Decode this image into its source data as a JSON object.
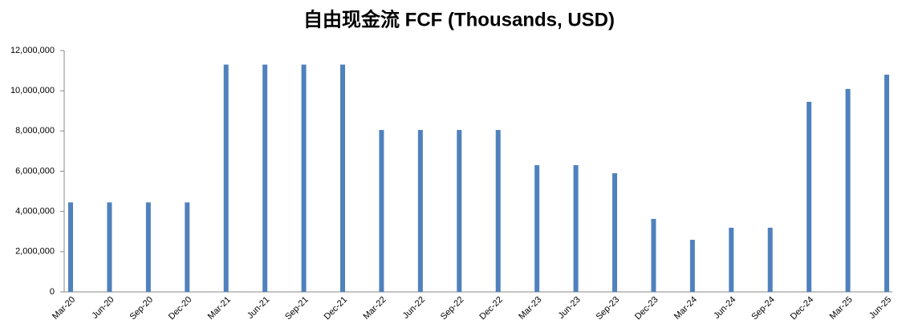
{
  "chart_data": {
    "type": "bar",
    "title": "自由现金流 FCF (Thousands, USD)",
    "categories": [
      "Mar-20",
      "Jun-20",
      "Sep-20",
      "Dec-20",
      "Mar-21",
      "Jun-21",
      "Sep-21",
      "Dec-21",
      "Mar-22",
      "Jun-22",
      "Sep-22",
      "Dec-22",
      "Mar-23",
      "Jun-23",
      "Sep-23",
      "Dec-23",
      "Mar-24",
      "Jun-24",
      "Sep-24",
      "Dec-24",
      "Mar-25",
      "Jun-25"
    ],
    "values": [
      4450000,
      4450000,
      4450000,
      4450000,
      11300000,
      11300000,
      11300000,
      11300000,
      8050000,
      8050000,
      8050000,
      8050000,
      6300000,
      6300000,
      5900000,
      3630000,
      2590000,
      3190000,
      3190000,
      9450000,
      10090000,
      10800000
    ],
    "color": "#4f81bd",
    "ylim": [
      0,
      12000000
    ],
    "yticks": [
      0,
      {
        "value": 2000000,
        "label": "2,000,000"
      },
      {
        "value": 4000000,
        "label": "4,000,000"
      },
      {
        "value": 6000000,
        "label": "6,000,000"
      },
      {
        "value": 8000000,
        "label": "8,000,000"
      },
      {
        "value": 10000000,
        "label": "10,000,000"
      },
      {
        "value": 12000000,
        "label": "12,000,000"
      }
    ],
    "grid": false
  }
}
